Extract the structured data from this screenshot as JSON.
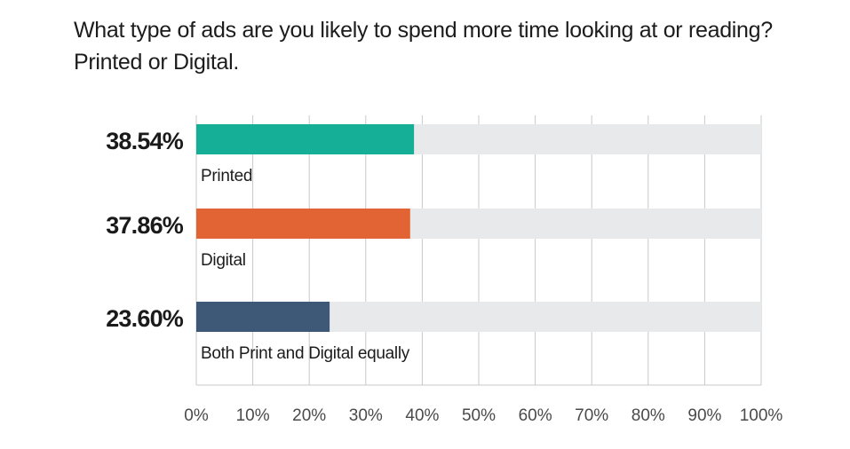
{
  "chart_data": {
    "type": "bar",
    "orientation": "horizontal",
    "title": "What type of ads are you likely to spend more time looking at or reading? Printed or Digital.",
    "categories": [
      "Printed",
      "Digital",
      "Both Print and Digital equally"
    ],
    "values": [
      38.54,
      37.86,
      23.6
    ],
    "value_labels": [
      "38.54%",
      "37.86%",
      "23.60%"
    ],
    "colors": [
      "#15ae96",
      "#e26333",
      "#3d5977"
    ],
    "track_color": "#e8e9ea",
    "grid_color": "#c9c9c9",
    "xlim": [
      0,
      100
    ],
    "x_ticks": [
      "0%",
      "10%",
      "20%",
      "30%",
      "40%",
      "50%",
      "60%",
      "70%",
      "80%",
      "90%",
      "100%"
    ],
    "grid": true,
    "legend": "none"
  }
}
